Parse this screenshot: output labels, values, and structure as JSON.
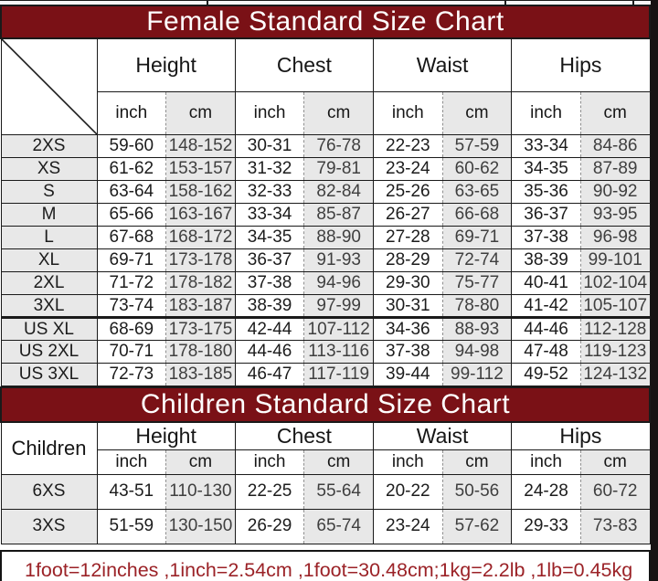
{
  "chart_data": [
    {
      "type": "table",
      "title": "Female Standard Size Chart",
      "section_columns": [
        "Height",
        "Chest",
        "Waist",
        "Hips"
      ],
      "unit_columns": [
        "inch",
        "cm"
      ],
      "rows": [
        {
          "size": "2XS",
          "values": [
            "59-60",
            "148-152",
            "30-31",
            "76-78",
            "22-23",
            "57-59",
            "33-34",
            "84-86"
          ]
        },
        {
          "size": "XS",
          "values": [
            "61-62",
            "153-157",
            "31-32",
            "79-81",
            "23-24",
            "60-62",
            "34-35",
            "87-89"
          ]
        },
        {
          "size": "S",
          "values": [
            "63-64",
            "158-162",
            "32-33",
            "82-84",
            "25-26",
            "63-65",
            "35-36",
            "90-92"
          ]
        },
        {
          "size": "M",
          "values": [
            "65-66",
            "163-167",
            "33-34",
            "85-87",
            "26-27",
            "66-68",
            "36-37",
            "93-95"
          ]
        },
        {
          "size": "L",
          "values": [
            "67-68",
            "168-172",
            "34-35",
            "88-90",
            "27-28",
            "69-71",
            "37-38",
            "96-98"
          ]
        },
        {
          "size": "XL",
          "values": [
            "69-71",
            "173-178",
            "36-37",
            "91-93",
            "28-29",
            "72-74",
            "38-39",
            "99-101"
          ]
        },
        {
          "size": "2XL",
          "values": [
            "71-72",
            "178-182",
            "37-38",
            "94-96",
            "29-30",
            "75-77",
            "40-41",
            "102-104"
          ]
        },
        {
          "size": "3XL",
          "values": [
            "73-74",
            "183-187",
            "38-39",
            "97-99",
            "30-31",
            "78-80",
            "41-42",
            "105-107"
          ]
        },
        {
          "size": "US XL",
          "values": [
            "68-69",
            "173-175",
            "42-44",
            "107-112",
            "34-36",
            "88-93",
            "44-46",
            "112-128"
          ]
        },
        {
          "size": "US 2XL",
          "values": [
            "70-71",
            "178-180",
            "44-46",
            "113-116",
            "37-38",
            "94-98",
            "47-48",
            "119-123"
          ]
        },
        {
          "size": "US 3XL",
          "values": [
            "72-73",
            "183-185",
            "46-47",
            "117-119",
            "39-44",
            "99-112",
            "49-52",
            "124-132"
          ]
        }
      ]
    },
    {
      "type": "table",
      "title": "Children Standard Size Chart",
      "row_header_label": "Children",
      "section_columns": [
        "Height",
        "Chest",
        "Waist",
        "Hips"
      ],
      "unit_columns": [
        "inch",
        "cm"
      ],
      "rows": [
        {
          "size": "6XS",
          "values": [
            "43-51",
            "110-130",
            "22-25",
            "55-64",
            "20-22",
            "50-56",
            "24-28",
            "60-72"
          ]
        },
        {
          "size": "3XS",
          "values": [
            "51-59",
            "130-150",
            "26-29",
            "65-74",
            "23-24",
            "57-62",
            "29-33",
            "73-83"
          ]
        }
      ]
    }
  ],
  "footer": {
    "note": "1foot=12inches ,1inch=2.54cm ,1foot=30.48cm;1kg=2.2lb ,1lb=0.45kg"
  },
  "colors": {
    "header_maroon": "#7a1116",
    "note_red": "#9b2227",
    "cell_gray": "#e8e8e8",
    "border_black": "#1a1a1a"
  }
}
